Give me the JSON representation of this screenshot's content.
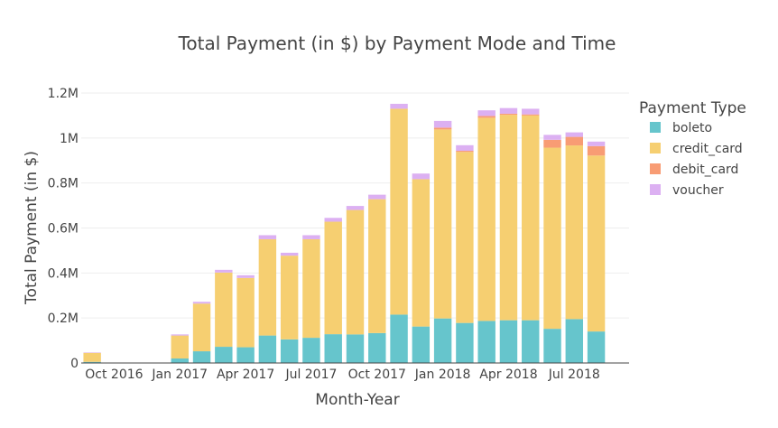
{
  "chart_data": {
    "type": "bar",
    "stacked": true,
    "title": "Total Payment (in $) by Payment Mode and Time",
    "xlabel": "Month-Year",
    "ylabel": "Total Payment (in $)",
    "ylim": [
      0,
      1200000
    ],
    "yticks": [
      {
        "value": 0,
        "label": "0"
      },
      {
        "value": 200000,
        "label": "0.2M"
      },
      {
        "value": 400000,
        "label": "0.4M"
      },
      {
        "value": 600000,
        "label": "0.6M"
      },
      {
        "value": 800000,
        "label": "0.8M"
      },
      {
        "value": 1000000,
        "label": "1M"
      },
      {
        "value": 1200000,
        "label": "1.2M"
      }
    ],
    "categories": [
      "2016-09",
      "2016-10",
      "2016-11",
      "2016-12",
      "2017-01",
      "2017-02",
      "2017-03",
      "2017-04",
      "2017-05",
      "2017-06",
      "2017-07",
      "2017-08",
      "2017-09",
      "2017-10",
      "2017-11",
      "2017-12",
      "2018-01",
      "2018-02",
      "2018-03",
      "2018-04",
      "2018-05",
      "2018-06",
      "2018-07",
      "2018-08",
      "2018-09"
    ],
    "xticks": [
      {
        "category": "2016-10",
        "label": "Oct 2016"
      },
      {
        "category": "2017-01",
        "label": "Jan 2017"
      },
      {
        "category": "2017-04",
        "label": "Apr 2017"
      },
      {
        "category": "2017-07",
        "label": "Jul 2017"
      },
      {
        "category": "2017-10",
        "label": "Oct 2017"
      },
      {
        "category": "2018-01",
        "label": "Jan 2018"
      },
      {
        "category": "2018-04",
        "label": "Apr 2018"
      },
      {
        "category": "2018-07",
        "label": "Jul 2018"
      }
    ],
    "grid": true,
    "legend": {
      "title": "Payment Type",
      "position": "right"
    },
    "series": [
      {
        "name": "boleto",
        "color": "#66c5cc",
        "values": [
          5000,
          0,
          0,
          0,
          20000,
          52000,
          72000,
          70000,
          122000,
          105000,
          112000,
          128000,
          127000,
          133000,
          215000,
          162000,
          198000,
          178000,
          187000,
          190000,
          190000,
          152000,
          195000,
          140000,
          0
        ]
      },
      {
        "name": "credit_card",
        "color": "#f6cf71",
        "values": [
          40000,
          0,
          0,
          0,
          102000,
          212000,
          330000,
          308000,
          428000,
          372000,
          438000,
          500000,
          553000,
          595000,
          915000,
          655000,
          840000,
          760000,
          903000,
          913000,
          910000,
          805000,
          772000,
          782000,
          0
        ]
      },
      {
        "name": "debit_card",
        "color": "#f89c74",
        "values": [
          0,
          0,
          0,
          0,
          0,
          0,
          0,
          0,
          0,
          0,
          0,
          0,
          0,
          0,
          0,
          0,
          8000,
          5000,
          8000,
          5000,
          5000,
          35000,
          38000,
          42000,
          0
        ]
      },
      {
        "name": "voucher",
        "color": "#dcb0f2",
        "values": [
          2000,
          0,
          0,
          0,
          5000,
          8000,
          12000,
          12000,
          18000,
          13000,
          18000,
          17000,
          18000,
          20000,
          22000,
          25000,
          30000,
          25000,
          25000,
          25000,
          25000,
          22000,
          20000,
          20000,
          0
        ]
      }
    ]
  }
}
